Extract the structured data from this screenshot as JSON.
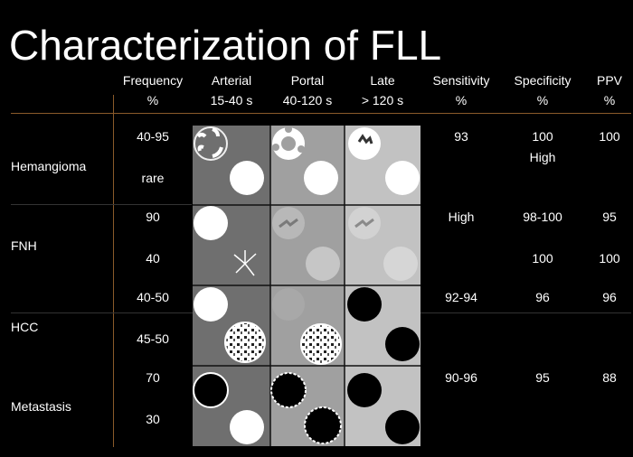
{
  "title": "Characterization of FLL",
  "headers": {
    "frequency": [
      "Frequency",
      "%"
    ],
    "arterial": [
      "Arterial",
      "15-40 s"
    ],
    "portal": [
      "Portal",
      "40-120 s"
    ],
    "late": [
      "Late",
      "> 120 s"
    ],
    "sensitivity": [
      "Sensitivity",
      "%"
    ],
    "specificity": [
      "Specificity",
      "%"
    ],
    "ppv": [
      "PPV",
      "%"
    ]
  },
  "row_labels": [
    "Hemangioma",
    "FNH",
    "HCC",
    "Metastasis"
  ],
  "frequency": [
    "40-95",
    "rare",
    "90",
    "40",
    "40-50",
    "45-50",
    "70",
    "30"
  ],
  "sensitivity": [
    "93",
    "High",
    "92-94",
    "90-96"
  ],
  "specificity": [
    "100",
    "High",
    "98-100",
    "100",
    "96",
    "95"
  ],
  "ppv": [
    "100",
    "95",
    "100",
    "96",
    "88"
  ],
  "colors": {
    "background": "#000000",
    "divider": "#8a5a2a",
    "arterial_bg": "#6f6f6f",
    "portal_bg": "#a0a0a0",
    "late_bg": "#c2c2c2"
  }
}
